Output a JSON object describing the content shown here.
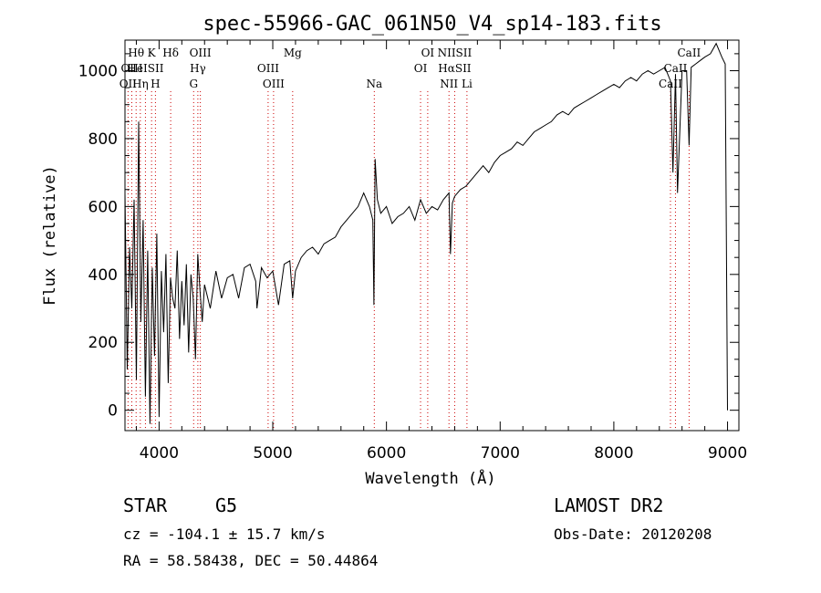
{
  "chart_data": {
    "type": "line",
    "title": "spec-55966-GAC_061N50_V4_sp14-183.fits",
    "xlabel": "Wavelength (Å)",
    "ylabel": "Flux (relative)",
    "xlim": [
      3700,
      9100
    ],
    "ylim": [
      -60,
      1090
    ],
    "x_ticks": [
      4000,
      5000,
      6000,
      7000,
      8000,
      9000
    ],
    "y_ticks": [
      0,
      200,
      400,
      600,
      800,
      1000
    ],
    "x_tick_labels": [
      "4000",
      "5000",
      "6000",
      "7000",
      "8000",
      "9000"
    ],
    "y_tick_labels": [
      "0",
      "200",
      "400",
      "600",
      "800",
      "1000"
    ],
    "grid": false,
    "series": [
      {
        "color": "#000000",
        "x": [
          3700,
          3720,
          3740,
          3760,
          3780,
          3800,
          3820,
          3840,
          3860,
          3880,
          3900,
          3920,
          3940,
          3960,
          3980,
          4000,
          4020,
          4040,
          4060,
          4080,
          4100,
          4120,
          4140,
          4160,
          4180,
          4200,
          4220,
          4240,
          4260,
          4280,
          4300,
          4320,
          4340,
          4360,
          4380,
          4400,
          4450,
          4500,
          4550,
          4600,
          4650,
          4700,
          4750,
          4800,
          4850,
          4861,
          4900,
          4950,
          5000,
          5050,
          5100,
          5150,
          5175,
          5200,
          5250,
          5300,
          5350,
          5400,
          5450,
          5500,
          5550,
          5600,
          5650,
          5700,
          5750,
          5800,
          5850,
          5880,
          5890,
          5900,
          5920,
          5950,
          6000,
          6050,
          6100,
          6150,
          6200,
          6250,
          6300,
          6350,
          6400,
          6450,
          6500,
          6550,
          6563,
          6580,
          6600,
          6650,
          6700,
          6750,
          6800,
          6850,
          6900,
          6950,
          7000,
          7050,
          7100,
          7150,
          7200,
          7250,
          7300,
          7350,
          7400,
          7450,
          7500,
          7550,
          7600,
          7650,
          7700,
          7750,
          7800,
          7850,
          7900,
          7950,
          8000,
          8050,
          8100,
          8150,
          8200,
          8250,
          8300,
          8350,
          8400,
          8450,
          8498,
          8520,
          8542,
          8560,
          8600,
          8640,
          8662,
          8680,
          8720,
          8760,
          8800,
          8850,
          8900,
          8950,
          8980,
          9000
        ],
        "y": [
          640,
          120,
          480,
          300,
          620,
          90,
          850,
          260,
          560,
          40,
          470,
          -40,
          420,
          160,
          520,
          -20,
          410,
          230,
          460,
          80,
          390,
          330,
          300,
          470,
          210,
          380,
          250,
          430,
          170,
          400,
          330,
          150,
          460,
          350,
          260,
          370,
          300,
          410,
          330,
          390,
          400,
          330,
          420,
          430,
          380,
          300,
          420,
          390,
          410,
          310,
          430,
          440,
          330,
          410,
          450,
          470,
          480,
          460,
          490,
          500,
          510,
          540,
          560,
          580,
          600,
          640,
          600,
          560,
          310,
          740,
          620,
          580,
          600,
          550,
          570,
          580,
          600,
          560,
          620,
          580,
          600,
          590,
          620,
          640,
          460,
          610,
          630,
          650,
          660,
          680,
          700,
          720,
          700,
          730,
          750,
          760,
          770,
          790,
          780,
          800,
          820,
          830,
          840,
          850,
          870,
          880,
          870,
          890,
          900,
          910,
          920,
          930,
          940,
          950,
          960,
          950,
          970,
          980,
          970,
          990,
          1000,
          990,
          1000,
          1010,
          970,
          700,
          990,
          640,
          1000,
          1000,
          780,
          1010,
          1020,
          1030,
          1040,
          1050,
          1080,
          1040,
          1020,
          0
        ]
      }
    ],
    "emission_lines": [
      {
        "label": "Hθ",
        "wavelength": 3798,
        "row": 1
      },
      {
        "label": "K",
        "wavelength": 3934,
        "row": 1
      },
      {
        "label": "Hδ",
        "wavelength": 4102,
        "row": 1
      },
      {
        "label": "OIII",
        "wavelength": 4363,
        "row": 1
      },
      {
        "label": "Mg",
        "wavelength": 5175,
        "row": 1
      },
      {
        "label": "OI",
        "wavelength": 6363,
        "row": 1
      },
      {
        "label": "NIISII",
        "wavelength": 6600,
        "row": 1
      },
      {
        "label": "CaII",
        "wavelength": 8662,
        "row": 1
      },
      {
        "label": "OIII",
        "wavelength": 3760,
        "row": 2
      },
      {
        "label": "HeISII",
        "wavelength": 3880,
        "row": 2
      },
      {
        "label": "Hγ",
        "wavelength": 4341,
        "row": 2
      },
      {
        "label": "OIII",
        "wavelength": 4959,
        "row": 2
      },
      {
        "label": "OI",
        "wavelength": 6300,
        "row": 2
      },
      {
        "label": "HαSII",
        "wavelength": 6600,
        "row": 2
      },
      {
        "label": "CaII",
        "wavelength": 8542,
        "row": 2
      },
      {
        "label": "OII",
        "wavelength": 3727,
        "row": 3
      },
      {
        "label": "Hη",
        "wavelength": 3835,
        "row": 3
      },
      {
        "label": "H",
        "wavelength": 3968,
        "row": 3
      },
      {
        "label": "G",
        "wavelength": 4304,
        "row": 3
      },
      {
        "label": "OIII",
        "wavelength": 5007,
        "row": 3
      },
      {
        "label": "Na",
        "wavelength": 5893,
        "row": 3
      },
      {
        "label": "NII",
        "wavelength": 6550,
        "row": 3
      },
      {
        "label": "Li",
        "wavelength": 6708,
        "row": 3
      },
      {
        "label": "CaII",
        "wavelength": 8498,
        "row": 3
      }
    ],
    "marker_line_color": "#cc0000"
  },
  "info": {
    "object_class": "STAR",
    "subclass": "G5",
    "survey": "LAMOST DR2",
    "redshift": "cz = -104.1 ± 15.7 km/s",
    "obs_date": "Obs-Date: 20120208",
    "coords": "RA =  58.58438, DEC =  50.44864"
  }
}
